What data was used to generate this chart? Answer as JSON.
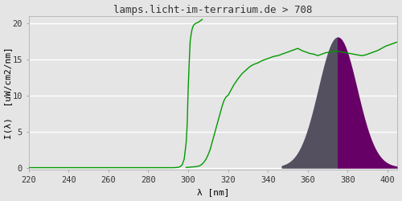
{
  "title": "lamps.licht-im-terrarium.de > 708",
  "xlabel": "λ [nm]",
  "ylabel": "I(λ)  [uW/cm2/nm]",
  "xlim": [
    220,
    405
  ],
  "ylim": [
    -0.3,
    21
  ],
  "yticks": [
    0,
    5,
    10,
    15,
    20
  ],
  "xticks": [
    220,
    240,
    260,
    280,
    300,
    320,
    340,
    360,
    380,
    400
  ],
  "bg_color": "#e5e5e5",
  "grid_color": "#ffffff",
  "line_color": "#009900",
  "line_width": 1.0,
  "peak_nm": 375,
  "bell_peak": 18.0,
  "bell_sigma": 9.5,
  "bell_start": 347,
  "bell_end": 405,
  "gray_color": "#555060",
  "purple_color": "#660066",
  "green_line1_x": [
    220,
    290,
    293,
    295,
    296,
    297,
    298,
    299,
    299.5,
    300,
    300.5,
    301,
    301.5,
    302,
    302.5,
    303,
    304,
    305,
    305.5,
    306,
    307
  ],
  "green_line1_y": [
    0,
    0,
    0,
    0.05,
    0.15,
    0.4,
    1.2,
    3.5,
    6.0,
    11.0,
    14.5,
    17.5,
    18.5,
    19.2,
    19.6,
    19.8,
    20.0,
    20.1,
    20.2,
    20.3,
    20.5
  ],
  "green_line2_x": [
    299,
    300,
    301,
    302,
    303,
    304,
    305,
    306,
    307,
    308,
    309,
    310,
    311,
    312,
    313,
    314,
    315,
    316,
    317,
    318,
    319,
    320,
    321,
    322,
    323,
    325,
    327,
    329,
    331,
    333,
    335,
    337,
    339,
    341,
    343,
    345,
    347,
    349,
    351,
    353,
    355,
    357,
    359,
    361,
    363,
    365,
    367,
    369,
    371,
    373,
    375,
    377,
    379,
    381,
    383,
    385,
    387,
    389,
    391,
    393,
    395,
    397,
    399,
    401,
    403,
    405
  ],
  "green_line2_y": [
    0.02,
    0.05,
    0.08,
    0.1,
    0.12,
    0.15,
    0.2,
    0.3,
    0.5,
    0.8,
    1.2,
    1.8,
    2.5,
    3.5,
    4.5,
    5.5,
    6.5,
    7.5,
    8.5,
    9.3,
    9.8,
    10.0,
    10.5,
    11.0,
    11.5,
    12.3,
    13.0,
    13.5,
    14.0,
    14.3,
    14.5,
    14.8,
    15.0,
    15.2,
    15.4,
    15.5,
    15.7,
    15.9,
    16.1,
    16.3,
    16.5,
    16.2,
    16.0,
    15.8,
    15.7,
    15.5,
    15.7,
    15.9,
    16.0,
    16.1,
    16.1,
    16.0,
    15.9,
    15.8,
    15.7,
    15.6,
    15.5,
    15.6,
    15.8,
    16.0,
    16.2,
    16.5,
    16.8,
    17.0,
    17.2,
    17.4
  ],
  "font_family": "monospace",
  "title_fontsize": 9,
  "axis_fontsize": 8,
  "tick_fontsize": 7.5
}
